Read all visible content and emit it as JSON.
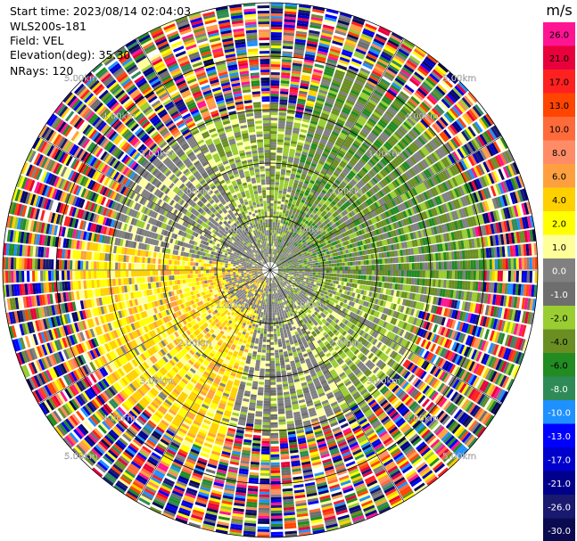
{
  "header": {
    "start_time": "Start time: 2023/08/14 02:04:03",
    "instrument": "WLS200s-181",
    "field": "Field: VEL",
    "elevation": "Elevation(deg): 35.30",
    "nrays": "NRays: 120"
  },
  "colorbar": {
    "unit": "m/s",
    "ticks": [
      "26.0",
      "21.0",
      "17.0",
      "13.0",
      "10.0",
      "8.0",
      "6.0",
      "4.0",
      "2.0",
      "1.0",
      "0.0",
      "-1.0",
      "-2.0",
      "-4.0",
      "-6.0",
      "-8.0",
      "-10.0",
      "-13.0",
      "-17.0",
      "-21.0",
      "-26.0",
      "-30.0"
    ],
    "colors": [
      "#ff1493",
      "#e8003c",
      "#ff2020",
      "#ff4500",
      "#ff6a3a",
      "#ff8c66",
      "#ffa040",
      "#ffd000",
      "#ffff00",
      "#ffff99",
      "#808080",
      "#6e6e6e",
      "#9acd32",
      "#6b8e23",
      "#228b22",
      "#2e8b57",
      "#1e90ff",
      "#0000ff",
      "#0000cd",
      "#00008b",
      "#191970",
      "#0a0a50"
    ]
  },
  "chart_data": {
    "type": "heatmap",
    "title": "",
    "field": "VEL",
    "units": "m/s",
    "nrays": 120,
    "range_rings_km": [
      1.0,
      2.0,
      3.0,
      4.0,
      5.0
    ],
    "ring_labels": [
      "1.00km",
      "2.00km",
      "3.00km",
      "4.00km",
      "5.00km"
    ],
    "max_range_km": 5.0,
    "gate_spacing_km": 0.05,
    "color_levels_ms": [
      26.0,
      21.0,
      17.0,
      13.0,
      10.0,
      8.0,
      6.0,
      4.0,
      2.0,
      1.0,
      0.0,
      -1.0,
      -2.0,
      -4.0,
      -6.0,
      -8.0,
      -10.0,
      -13.0,
      -17.0,
      -21.0,
      -26.0,
      -30.0
    ],
    "inner_zone_km": 1.0,
    "signal_limit_km": {
      "calm": 3.0,
      "positive": 3.6,
      "negative": 4.0
    },
    "sectors": [
      {
        "from_deg": 15,
        "to_deg": 100,
        "velocity_class": "negative-green"
      },
      {
        "from_deg": 100,
        "to_deg": 150,
        "velocity_class": "negative-light"
      },
      {
        "from_deg": 150,
        "to_deg": 195,
        "velocity_class": "calm-grey"
      },
      {
        "from_deg": 195,
        "to_deg": 280,
        "velocity_class": "positive-yellow"
      },
      {
        "from_deg": 280,
        "to_deg": 330,
        "velocity_class": "calm-grey"
      },
      {
        "from_deg": 330,
        "to_deg": 375,
        "velocity_class": "negative-light"
      }
    ],
    "outer_region": "noise"
  }
}
